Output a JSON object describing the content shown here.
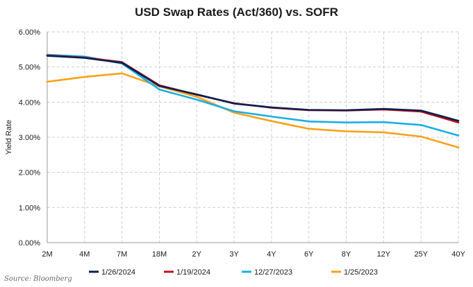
{
  "chart_data": {
    "type": "line",
    "title": "USD Swap Rates (Act/360) vs. SOFR",
    "xlabel": "",
    "ylabel": "Yield Rate",
    "categories": [
      "2M",
      "4M",
      "7M",
      "18M",
      "2Y",
      "3Y",
      "4Y",
      "6Y",
      "8Y",
      "12Y",
      "25Y",
      "40Y"
    ],
    "ylim": [
      0,
      6
    ],
    "yticks": [
      "0.00%",
      "1.00%",
      "2.00%",
      "3.00%",
      "4.00%",
      "5.00%",
      "6.00%"
    ],
    "grid": "dashed",
    "legend_position": "bottom",
    "series": [
      {
        "name": "1/26/2024",
        "color": "#0b1f4e",
        "values": [
          5.32,
          5.26,
          5.12,
          4.46,
          4.22,
          3.96,
          3.85,
          3.78,
          3.77,
          3.81,
          3.76,
          3.47
        ]
      },
      {
        "name": "1/19/2024",
        "color": "#c0121f",
        "values": [
          5.33,
          5.27,
          5.14,
          4.48,
          4.21,
          3.97,
          3.84,
          3.77,
          3.76,
          3.79,
          3.73,
          3.42
        ]
      },
      {
        "name": "12/27/2023",
        "color": "#1aaee5",
        "values": [
          5.35,
          5.3,
          5.1,
          4.36,
          4.07,
          3.74,
          3.59,
          3.45,
          3.42,
          3.43,
          3.35,
          3.05
        ]
      },
      {
        "name": "1/25/2023",
        "color": "#f6a21a",
        "values": [
          4.58,
          4.72,
          4.82,
          4.45,
          4.15,
          3.7,
          3.46,
          3.24,
          3.17,
          3.14,
          3.02,
          2.71
        ]
      }
    ],
    "source": "Source: Bloomberg"
  }
}
